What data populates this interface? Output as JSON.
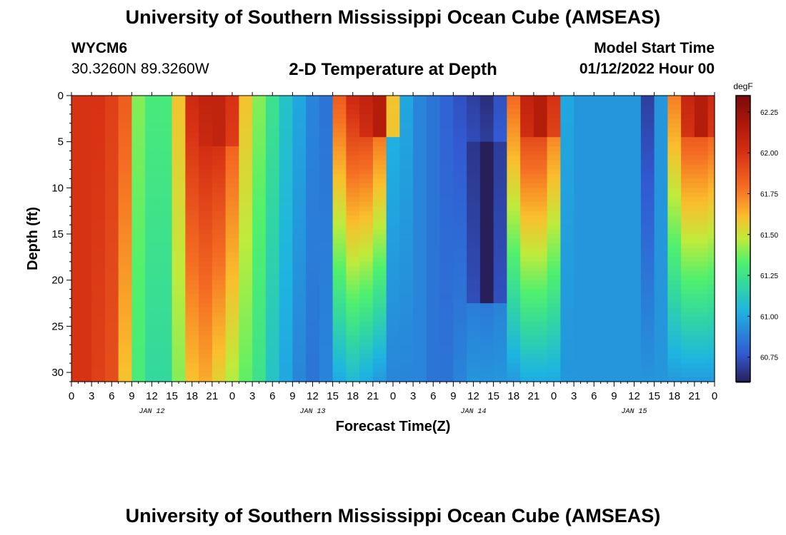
{
  "page": {
    "title": "University of Southern Mississippi Ocean Cube (AMSEAS)",
    "title_repeat": "University of Southern Mississippi Ocean Cube (AMSEAS)",
    "station_id": "WYCM6",
    "station_coords": "30.3260N  89.3260W",
    "subtitle": "2-D Temperature at Depth",
    "model_start_label": "Model Start Time",
    "model_start_value": "01/12/2022 Hour 00"
  },
  "chart_data": {
    "type": "heatmap",
    "xlabel": "Forecast Time(Z)",
    "ylabel": "Depth (ft)",
    "x_tick_labels": [
      "0",
      "3",
      "6",
      "9",
      "12",
      "15",
      "18",
      "21",
      "0",
      "3",
      "6",
      "9",
      "12",
      "15",
      "18",
      "21",
      "0",
      "3",
      "6",
      "9",
      "12",
      "15",
      "18",
      "21",
      "0",
      "3",
      "6",
      "9",
      "12",
      "15",
      "18",
      "21",
      "0"
    ],
    "x_range_hours": [
      0,
      96
    ],
    "day_labels": [
      "JAN 12",
      "JAN 13",
      "JAN 14",
      "JAN 15"
    ],
    "ylim": [
      0,
      31
    ],
    "y_tick_labels": [
      "0",
      "5",
      "10",
      "15",
      "20",
      "25",
      "30"
    ],
    "y_tick_values": [
      0,
      5,
      10,
      15,
      20,
      25,
      30
    ],
    "colorbar": {
      "unit": "degF",
      "range": [
        60.6,
        62.35
      ],
      "tick_labels": [
        "62.25",
        "62.00",
        "61.75",
        "61.50",
        "61.25",
        "61.00",
        "60.75"
      ],
      "tick_values": [
        62.25,
        62.0,
        61.75,
        61.5,
        61.25,
        61.0,
        60.75
      ]
    },
    "column_hours": [
      0,
      2,
      4,
      6,
      8,
      10,
      12,
      14,
      16,
      18,
      20,
      22,
      24,
      26,
      28,
      30,
      32,
      34,
      36,
      38,
      40,
      42,
      44,
      46,
      48,
      50,
      52,
      54,
      56,
      58,
      60,
      62,
      64,
      66,
      68,
      70,
      72,
      74,
      76,
      78,
      80,
      82,
      84,
      86,
      88,
      90,
      92,
      94,
      96
    ],
    "surface_temp_0ft": [
      62.0,
      62.0,
      62.0,
      61.95,
      61.85,
      61.4,
      61.3,
      61.3,
      61.6,
      62.05,
      62.1,
      62.1,
      61.9,
      61.6,
      61.4,
      61.25,
      61.1,
      61.0,
      60.9,
      60.85,
      61.85,
      62.05,
      62.05,
      61.9,
      61.05,
      61.0,
      60.9,
      60.85,
      60.8,
      60.75,
      60.7,
      60.65,
      60.75,
      61.8,
      62.05,
      62.05,
      61.85,
      61.0,
      60.95,
      60.95,
      60.95,
      60.95,
      60.95,
      60.7,
      60.95,
      61.75,
      62.0,
      62.0,
      61.95
    ],
    "bottom_temp_30ft": [
      62.0,
      62.0,
      61.95,
      61.9,
      61.6,
      61.3,
      61.2,
      61.2,
      61.4,
      61.6,
      61.65,
      61.55,
      61.45,
      61.35,
      61.25,
      61.1,
      61.0,
      60.9,
      60.85,
      60.9,
      61.0,
      61.05,
      61.0,
      60.95,
      60.9,
      60.9,
      60.9,
      60.85,
      60.85,
      60.9,
      60.95,
      60.95,
      60.95,
      60.95,
      61.0,
      61.0,
      61.0,
      60.95,
      60.95,
      60.95,
      60.95,
      60.95,
      60.95,
      60.95,
      60.95,
      60.95,
      60.95,
      60.95,
      60.95
    ],
    "features": [
      {
        "hour": 22,
        "depth_ft": [
          0,
          5
        ],
        "temp": 62.1
      },
      {
        "hour": 46,
        "depth_ft": [
          0,
          4
        ],
        "temp": 62.15
      },
      {
        "hour": 70,
        "depth_ft": [
          0,
          4
        ],
        "temp": 62.15
      },
      {
        "hour": 94,
        "depth_ft": [
          0,
          4
        ],
        "temp": 62.15
      },
      {
        "hour": 62,
        "depth_ft": [
          5,
          22
        ],
        "temp": 60.6
      }
    ]
  }
}
